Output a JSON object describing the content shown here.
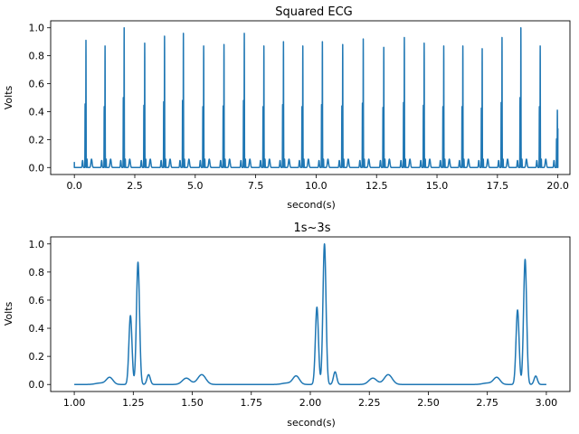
{
  "chart_data": [
    {
      "type": "line",
      "title": "Squared ECG",
      "xlabel": "second(s)",
      "ylabel": "Volts",
      "xlim": [
        -0.98,
        20.5
      ],
      "ylim": [
        -0.05,
        1.05
      ],
      "xticks": [
        0.0,
        2.5,
        5.0,
        7.5,
        10.0,
        12.5,
        15.0,
        17.5,
        20.0
      ],
      "xtick_labels": [
        "0.0",
        "2.5",
        "5.0",
        "7.5",
        "10.0",
        "12.5",
        "15.0",
        "17.5",
        "20.0"
      ],
      "yticks": [
        0.0,
        0.2,
        0.4,
        0.6,
        0.8,
        1.0
      ],
      "ytick_labels": [
        "0.0",
        "0.2",
        "0.4",
        "0.6",
        "0.8",
        "1.0"
      ],
      "grid": false,
      "series": [
        {
          "color": "#1f77b4",
          "description": "R-peak times (s) and amplitudes (V) of the squared ECG signal",
          "beats": [
            {
              "t": 0.48,
              "r": 0.91
            },
            {
              "t": 1.27,
              "r": 0.87
            },
            {
              "t": 2.06,
              "r": 1.0
            },
            {
              "t": 2.91,
              "r": 0.89
            },
            {
              "t": 3.73,
              "r": 0.94
            },
            {
              "t": 4.51,
              "r": 0.96
            },
            {
              "t": 5.35,
              "r": 0.87
            },
            {
              "t": 6.19,
              "r": 0.88
            },
            {
              "t": 7.03,
              "r": 0.96
            },
            {
              "t": 7.84,
              "r": 0.87
            },
            {
              "t": 8.65,
              "r": 0.9
            },
            {
              "t": 9.45,
              "r": 0.87
            },
            {
              "t": 10.26,
              "r": 0.9
            },
            {
              "t": 11.1,
              "r": 0.88
            },
            {
              "t": 11.95,
              "r": 0.92
            },
            {
              "t": 12.8,
              "r": 0.86
            },
            {
              "t": 13.65,
              "r": 0.93
            },
            {
              "t": 14.47,
              "r": 0.89
            },
            {
              "t": 15.28,
              "r": 0.87
            },
            {
              "t": 16.07,
              "r": 0.87
            },
            {
              "t": 16.87,
              "r": 0.85
            },
            {
              "t": 17.69,
              "r": 0.93
            },
            {
              "t": 18.47,
              "r": 1.0
            },
            {
              "t": 19.27,
              "r": 0.87
            },
            {
              "t": 19.98,
              "r": 0.41
            }
          ],
          "end": {
            "x": 20.0,
            "y": 0.28
          }
        }
      ]
    },
    {
      "type": "line",
      "title": "1s~3s",
      "xlabel": "second(s)",
      "ylabel": "Volts",
      "xlim": [
        0.9,
        3.1
      ],
      "ylim": [
        -0.05,
        1.05
      ],
      "xticks": [
        1.0,
        1.25,
        1.5,
        1.75,
        2.0,
        2.25,
        2.5,
        2.75,
        3.0
      ],
      "xtick_labels": [
        "1.00",
        "1.25",
        "1.50",
        "1.75",
        "2.00",
        "2.25",
        "2.50",
        "2.75",
        "3.00"
      ],
      "yticks": [
        0.0,
        0.2,
        0.4,
        0.6,
        0.8,
        1.0
      ],
      "ytick_labels": [
        "0.0",
        "0.2",
        "0.4",
        "0.6",
        "0.8",
        "1.0"
      ],
      "grid": false,
      "series": [
        {
          "color": "#1f77b4",
          "beats": [
            {
              "t": 1.27,
              "q": 0.49,
              "r": 0.87,
              "s": 0.07,
              "pre": 0.05,
              "p": 0.01,
              "tw": 0.07
            },
            {
              "t": 2.06,
              "q": 0.55,
              "r": 1.0,
              "s": 0.09,
              "pre": 0.06,
              "p": 0.01,
              "tw": 0.07
            },
            {
              "t": 2.91,
              "q": 0.53,
              "r": 0.89,
              "s": 0.06,
              "pre": 0.05,
              "p": 0.01,
              "tw": 0.07
            }
          ],
          "start": {
            "x": 1.0,
            "y": 0.0
          },
          "end": {
            "x": 3.0,
            "y": 0.0
          }
        }
      ]
    }
  ]
}
